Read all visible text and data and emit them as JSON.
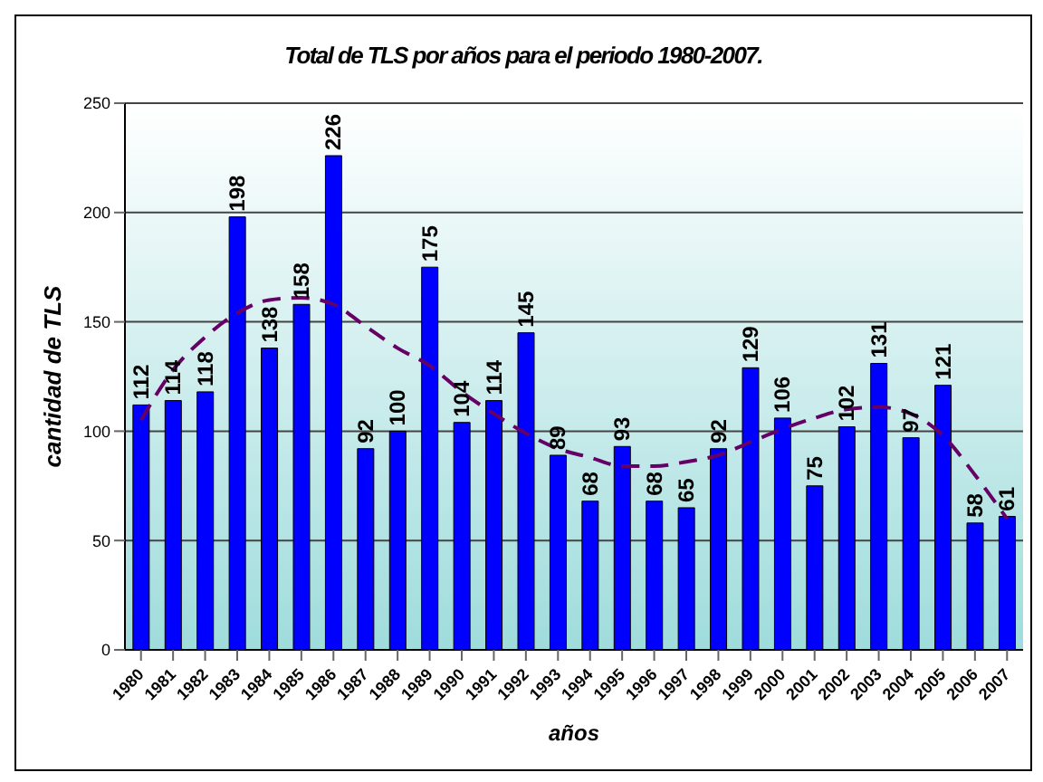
{
  "chart_data": {
    "type": "bar",
    "title": "Total de TLS por años para el periodo 1980-2007.",
    "xlabel": "años",
    "ylabel": "cantidad de TLS",
    "categories": [
      "1980",
      "1981",
      "1982",
      "1983",
      "1984",
      "1985",
      "1986",
      "1987",
      "1988",
      "1989",
      "1990",
      "1991",
      "1992",
      "1993",
      "1994",
      "1995",
      "1996",
      "1997",
      "1998",
      "1999",
      "2000",
      "2001",
      "2002",
      "2003",
      "2004",
      "2005",
      "2006",
      "2007"
    ],
    "series": [
      {
        "color": "#0000ff",
        "values": [
          112,
          114,
          118,
          198,
          138,
          158,
          226,
          92,
          100,
          175,
          104,
          114,
          145,
          89,
          68,
          93,
          68,
          65,
          92,
          129,
          106,
          75,
          102,
          131,
          97,
          121,
          58,
          61
        ],
        "value_labels": [
          "112",
          "114",
          "118",
          "198",
          "138",
          "158",
          "226",
          "92",
          "100",
          "175",
          "104",
          "114",
          "145",
          "89",
          "68",
          "93",
          "68",
          "65",
          "92",
          "129",
          "106",
          "75",
          "102",
          "131",
          "97",
          "121",
          "58",
          "61"
        ]
      },
      {
        "type": "line",
        "color": "#660066",
        "line_style": "dashed",
        "marker": "none",
        "values": [
          105,
          128,
          143,
          154,
          160,
          161,
          158,
          148,
          138,
          130,
          118,
          108,
          99,
          92,
          88,
          84,
          84,
          86,
          89,
          95,
          101,
          106,
          110,
          111,
          108,
          98,
          80,
          60
        ]
      }
    ],
    "ylim": [
      0,
      250
    ],
    "yticks": [
      0,
      50,
      100,
      150,
      200,
      250
    ],
    "grid": "y"
  }
}
